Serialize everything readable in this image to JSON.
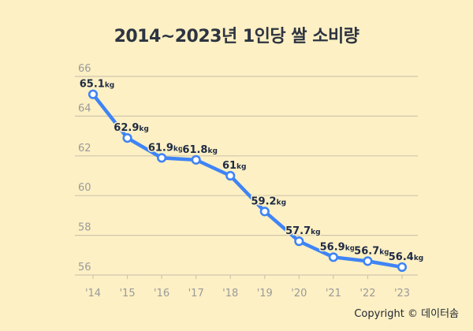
{
  "chart_data": {
    "type": "line",
    "title": "2014~2023년 1인당 쌀 소비량",
    "categories": [
      "'14",
      "'15",
      "'16",
      "'17",
      "'18",
      "'19",
      "'20",
      "'21",
      "'22",
      "'23"
    ],
    "values": [
      65.1,
      62.9,
      61.9,
      61.8,
      61,
      59.2,
      57.7,
      56.9,
      56.7,
      56.4
    ],
    "value_labels": [
      "65.1",
      "62.9",
      "61.9",
      "61.8",
      "61",
      "59.2",
      "57.7",
      "56.9",
      "56.7",
      "56.4"
    ],
    "unit_suffix": "kg",
    "ylim": [
      56,
      66
    ],
    "yticks": [
      56,
      58,
      60,
      62,
      64,
      66
    ],
    "grid": true,
    "line_color": "#3f84f5",
    "background": "#fdf0c4"
  },
  "footer": {
    "copyright": "Copyright © 데이터솜"
  }
}
